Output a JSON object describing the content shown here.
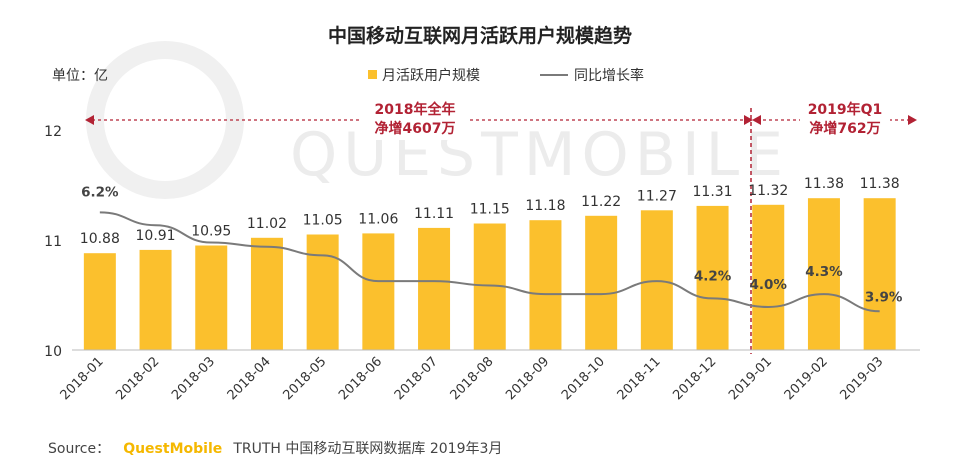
{
  "chart_data": {
    "type": "bar",
    "title": "中国移动互联网月活跃用户规模趋势",
    "unit_label": "单位：亿",
    "categories": [
      "2018-01",
      "2018-02",
      "2018-03",
      "2018-04",
      "2018-05",
      "2018-06",
      "2018-07",
      "2018-08",
      "2018-09",
      "2018-10",
      "2018-11",
      "2018-12",
      "2019-01",
      "2019-02",
      "2019-03"
    ],
    "series": [
      {
        "name": "月活跃用户规模",
        "type": "bar",
        "color": "#fbc02d",
        "values": [
          10.88,
          10.91,
          10.95,
          11.02,
          11.05,
          11.06,
          11.11,
          11.15,
          11.18,
          11.22,
          11.27,
          11.31,
          11.32,
          11.38,
          11.38
        ]
      },
      {
        "name": "同比增长率",
        "type": "line",
        "color": "#7a7a7a",
        "values": [
          6.2,
          5.9,
          5.5,
          5.4,
          5.2,
          4.6,
          4.6,
          4.5,
          4.3,
          4.3,
          4.6,
          4.2,
          4.0,
          4.3,
          3.9
        ],
        "labels": [
          {
            "index": 0,
            "text": "6.2%"
          },
          {
            "index": 11,
            "text": "4.2%"
          },
          {
            "index": 12,
            "text": "4.0%"
          },
          {
            "index": 13,
            "text": "4.3%"
          },
          {
            "index": 14,
            "text": "3.9%"
          }
        ]
      }
    ],
    "yticks": [
      "10",
      "11",
      "12"
    ],
    "ylim": [
      10,
      12
    ],
    "legend_position": "top-center",
    "annotations": [
      {
        "line1": "2018年全年",
        "line2": "净增4607万"
      },
      {
        "line1": "2019年Q1",
        "line2": "净增762万"
      }
    ]
  },
  "source": {
    "prefix": "Source：",
    "brand": "QuestMobile",
    "rest": "TRUTH 中国移动互联网数据库 2019年3月"
  },
  "watermark": "QUESTMOBILE",
  "colors": {
    "bar": "#fbc02d",
    "line": "#7a7a7a",
    "annotation": "#b22234"
  }
}
